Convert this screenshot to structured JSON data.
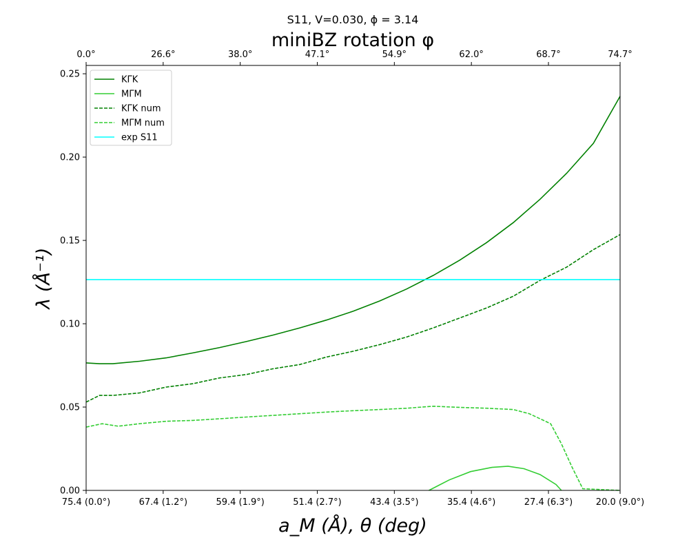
{
  "chart_data": {
    "type": "line",
    "title": "S11, V=0.030, ϕ = 3.14",
    "top_axis_label": "miniBZ rotation φ",
    "xlabel": "a_M (Å), θ (deg)",
    "ylabel": "λ (Å⁻¹)",
    "xlim": [
      0,
      10
    ],
    "ylim": [
      0,
      0.255
    ],
    "grid": false,
    "legend_position": "top-left",
    "bottom_tick_labels": [
      "75.4 (0.0°)",
      "67.4 (1.2°)",
      "59.4 (1.9°)",
      "51.4 (2.7°)",
      "43.4 (3.5°)",
      "35.4 (4.6°)",
      "27.4 (6.3°)",
      "20.0 (9.0°)"
    ],
    "top_tick_labels": [
      "0.0°",
      "26.6°",
      "38.0°",
      "47.1°",
      "54.9°",
      "62.0°",
      "68.7°",
      "74.7°"
    ],
    "y_ticks": [
      0.0,
      0.05,
      0.1,
      0.15,
      0.2,
      0.25
    ],
    "y_tick_labels": [
      "0.00",
      "0.05",
      "0.10",
      "0.15",
      "0.20",
      "0.25"
    ],
    "x_ticks": [
      0.0,
      1.443,
      2.886,
      4.329,
      5.772,
      7.215,
      8.658,
      10.0
    ],
    "series": [
      {
        "name": "KΓK",
        "color": "#008000",
        "style": "solid",
        "x": [
          0.0,
          0.25,
          0.5,
          1.0,
          1.5,
          2.0,
          2.5,
          3.0,
          3.5,
          4.0,
          4.5,
          5.0,
          5.5,
          6.0,
          6.5,
          7.0,
          7.5,
          8.0,
          8.5,
          9.0,
          9.5,
          10.0
        ],
        "y": [
          0.0765,
          0.076,
          0.076,
          0.0775,
          0.0795,
          0.0825,
          0.0857,
          0.0893,
          0.0932,
          0.0975,
          0.1022,
          0.1075,
          0.1137,
          0.1208,
          0.129,
          0.1382,
          0.1487,
          0.1607,
          0.1747,
          0.1903,
          0.2083,
          0.2365
        ]
      },
      {
        "name": "MΓM",
        "color": "#32cd32",
        "style": "solid",
        "x": [
          6.42,
          6.8,
          7.2,
          7.6,
          7.9,
          8.2,
          8.5,
          8.8,
          8.9
        ],
        "y": [
          0.0,
          0.0063,
          0.0113,
          0.0138,
          0.0145,
          0.013,
          0.0095,
          0.0035,
          0.0
        ]
      },
      {
        "name": "KΓK num",
        "color": "#008000",
        "style": "dashed",
        "x": [
          0.0,
          0.25,
          0.5,
          1.0,
          1.5,
          2.0,
          2.5,
          3.0,
          3.5,
          4.0,
          4.5,
          5.0,
          5.5,
          6.0,
          6.5,
          7.0,
          7.5,
          8.0,
          8.5,
          9.0,
          9.5,
          10.0
        ],
        "y": [
          0.053,
          0.057,
          0.057,
          0.0585,
          0.062,
          0.064,
          0.0675,
          0.0695,
          0.073,
          0.0755,
          0.08,
          0.0835,
          0.0875,
          0.092,
          0.0975,
          0.1035,
          0.1095,
          0.1165,
          0.126,
          0.134,
          0.1445,
          0.1535
        ]
      },
      {
        "name": "MΓM num",
        "color": "#32cd32",
        "style": "dashed",
        "x": [
          0.0,
          0.3,
          0.6,
          1.0,
          1.5,
          2.0,
          2.5,
          3.0,
          3.5,
          4.0,
          4.5,
          5.0,
          5.5,
          6.0,
          6.5,
          7.0,
          7.5,
          8.0,
          8.3,
          8.7,
          8.9,
          9.1,
          9.3,
          10.0
        ],
        "y": [
          0.038,
          0.04,
          0.0385,
          0.04,
          0.0415,
          0.042,
          0.043,
          0.044,
          0.045,
          0.046,
          0.047,
          0.0478,
          0.0485,
          0.0493,
          0.0505,
          0.0498,
          0.0493,
          0.0485,
          0.046,
          0.04,
          0.028,
          0.014,
          0.001,
          0.0
        ]
      },
      {
        "name": "exp S11",
        "color": "#00ffff",
        "style": "solid",
        "x": [
          0.0,
          10.0
        ],
        "y": [
          0.1265,
          0.1265
        ]
      }
    ]
  }
}
